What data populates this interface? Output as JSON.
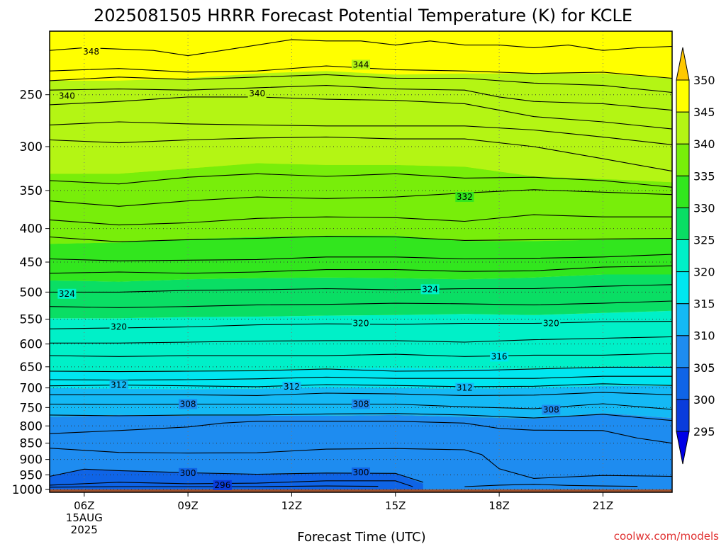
{
  "chart_data": {
    "type": "time-height contour",
    "title": "2025081505 HRRR Forecast Potential Temperature (K) for KCLE",
    "xlabel": "Forecast Time (UTC)",
    "ylabel": "",
    "credit": "coolwx.com/models",
    "x_ticks": [
      "06Z",
      "09Z",
      "12Z",
      "15Z",
      "18Z",
      "21Z"
    ],
    "x_date_lines": [
      "15AUG",
      "2025"
    ],
    "x_range_hours_utc": [
      5,
      23
    ],
    "y_ticks": [
      250,
      300,
      350,
      400,
      450,
      500,
      550,
      600,
      650,
      700,
      750,
      800,
      850,
      900,
      950,
      1000
    ],
    "y_range_hPa": [
      1010,
      200
    ],
    "y_scale": "log",
    "grid": "dotted",
    "colorbar": {
      "levels": [
        295,
        300,
        305,
        310,
        315,
        320,
        325,
        330,
        335,
        340,
        345,
        350
      ],
      "colors": [
        "#0000e6",
        "#0a3cdc",
        "#0f64e6",
        "#1e8cf0",
        "#14b9f5",
        "#00e6f0",
        "#00f0c8",
        "#0ade64",
        "#32e61e",
        "#78ee0a",
        "#b4f514",
        "#ffff00",
        "#ffc800"
      ],
      "extend": "both"
    },
    "ground_color": "#a0522d",
    "contour_labels": [
      {
        "value": 348,
        "hour": 6.2,
        "p": 215
      },
      {
        "value": 344,
        "hour": 14.0,
        "p": 225
      },
      {
        "value": 340,
        "hour": 5.5,
        "p": 251
      },
      {
        "value": 340,
        "hour": 11.0,
        "p": 249
      },
      {
        "value": 332,
        "hour": 17.0,
        "p": 358
      },
      {
        "value": 324,
        "hour": 5.5,
        "p": 503
      },
      {
        "value": 324,
        "hour": 16.0,
        "p": 495
      },
      {
        "value": 320,
        "hour": 7.0,
        "p": 565
      },
      {
        "value": 320,
        "hour": 14.0,
        "p": 558
      },
      {
        "value": 320,
        "hour": 19.5,
        "p": 558
      },
      {
        "value": 316,
        "hour": 18.0,
        "p": 627
      },
      {
        "value": 312,
        "hour": 7.0,
        "p": 693
      },
      {
        "value": 312,
        "hour": 12.0,
        "p": 697
      },
      {
        "value": 312,
        "hour": 17.0,
        "p": 700
      },
      {
        "value": 308,
        "hour": 9.0,
        "p": 741
      },
      {
        "value": 308,
        "hour": 14.0,
        "p": 741
      },
      {
        "value": 308,
        "hour": 19.5,
        "p": 756
      },
      {
        "value": 300,
        "hour": 9.0,
        "p": 944
      },
      {
        "value": 300,
        "hour": 14.0,
        "p": 942
      },
      {
        "value": 296,
        "hour": 10.0,
        "p": 985
      }
    ],
    "contour_lines": [
      {
        "value": 348,
        "hours": [
          5,
          6,
          8,
          9,
          10,
          11,
          12,
          13,
          14,
          15,
          16,
          17,
          18,
          19,
          20,
          21,
          22,
          23
        ],
        "p": [
          214,
          212,
          214,
          218,
          214,
          210,
          206,
          207,
          207,
          210,
          207,
          210,
          210,
          212,
          210,
          214,
          212,
          211
        ]
      },
      {
        "value": 346,
        "hours": [
          5,
          7,
          9,
          11,
          13,
          15,
          17,
          19,
          21,
          23
        ],
        "p": [
          230,
          228,
          231,
          230,
          226,
          229,
          230,
          232,
          231,
          236
        ]
      },
      {
        "value": 344,
        "hours": [
          5,
          7,
          9,
          11,
          13,
          15,
          17,
          19,
          21,
          23
        ],
        "p": [
          238,
          235,
          237,
          235,
          233,
          236,
          236,
          240,
          242,
          248
        ]
      },
      {
        "value": 342,
        "hours": [
          5,
          7,
          9,
          11,
          13,
          15,
          17,
          18,
          19,
          21,
          23
        ],
        "p": [
          246,
          245,
          246,
          244,
          242,
          245,
          246,
          252,
          256,
          258,
          264
        ]
      },
      {
        "value": 340,
        "hours": [
          5,
          7,
          9,
          11,
          13,
          15,
          17,
          19,
          21,
          23
        ],
        "p": [
          259,
          256,
          252,
          252,
          254,
          255,
          258,
          270,
          275,
          282
        ]
      },
      {
        "value": 338,
        "hours": [
          5,
          7,
          9,
          11,
          13,
          15,
          17,
          19,
          21,
          23
        ],
        "p": [
          278,
          275,
          277,
          278,
          279,
          279,
          279,
          283,
          290,
          298
        ]
      },
      {
        "value": 336,
        "hours": [
          5,
          7,
          9,
          11,
          13,
          15,
          17,
          19,
          21,
          23
        ],
        "p": [
          293,
          296,
          293,
          291,
          290,
          292,
          292,
          300,
          313,
          327
        ]
      },
      {
        "value": 334,
        "hours": [
          5,
          7,
          9,
          11,
          13,
          15,
          17,
          19,
          21,
          23
        ],
        "p": [
          338,
          342,
          334,
          330,
          333,
          330,
          335,
          334,
          338,
          346
        ]
      },
      {
        "value": 332,
        "hours": [
          5,
          7,
          9,
          11,
          13,
          15,
          17,
          19,
          21,
          23
        ],
        "p": [
          363,
          370,
          363,
          358,
          360,
          358,
          353,
          349,
          352,
          355
        ]
      },
      {
        "value": 330,
        "hours": [
          5,
          7,
          9,
          11,
          13,
          15,
          17,
          19,
          21,
          23
        ],
        "p": [
          388,
          395,
          392,
          386,
          384,
          385,
          390,
          381,
          384,
          384
        ]
      },
      {
        "value": 328,
        "hours": [
          5,
          7,
          9,
          11,
          13,
          15,
          17,
          19,
          21,
          23
        ],
        "p": [
          412,
          419,
          416,
          414,
          411,
          412,
          417,
          416,
          415,
          414
        ]
      },
      {
        "value": 326,
        "hours": [
          5,
          7,
          9,
          11,
          13,
          15,
          17,
          19,
          21,
          23
        ],
        "p": [
          445,
          448,
          447,
          446,
          442,
          442,
          445,
          444,
          442,
          438
        ]
      },
      {
        "value": 325,
        "hours": [
          5,
          7,
          9,
          11,
          13,
          15,
          17,
          19,
          21,
          23
        ],
        "p": [
          468,
          466,
          468,
          466,
          462,
          462,
          465,
          464,
          458,
          456
        ]
      },
      {
        "value": 324,
        "hours": [
          5,
          7,
          9,
          11,
          13,
          15,
          17,
          19,
          21,
          23
        ],
        "p": [
          500,
          500,
          497,
          496,
          494,
          496,
          494,
          494,
          490,
          487
        ]
      },
      {
        "value": 322,
        "hours": [
          5,
          7,
          9,
          11,
          13,
          15,
          17,
          19,
          21,
          23
        ],
        "p": [
          526,
          528,
          526,
          523,
          522,
          520,
          521,
          523,
          520,
          516
        ]
      },
      {
        "value": 320,
        "hours": [
          5,
          7,
          9,
          11,
          13,
          15,
          17,
          19,
          21,
          23
        ],
        "p": [
          569,
          567,
          565,
          561,
          559,
          560,
          558,
          558,
          555,
          554
        ]
      },
      {
        "value": 318,
        "hours": [
          5,
          7,
          9,
          11,
          13,
          15,
          17,
          19,
          21,
          23
        ],
        "p": [
          598,
          598,
          596,
          594,
          593,
          593,
          596,
          591,
          588,
          585
        ]
      },
      {
        "value": 316,
        "hours": [
          5,
          7,
          9,
          11,
          13,
          15,
          17,
          19,
          21,
          23
        ],
        "p": [
          625,
          627,
          625,
          625,
          625,
          622,
          627,
          624,
          624,
          620
        ]
      },
      {
        "value": 314,
        "hours": [
          5,
          7,
          9,
          11,
          13,
          15,
          17,
          19,
          21,
          23
        ],
        "p": [
          660,
          661,
          660,
          659,
          655,
          660,
          659,
          655,
          651,
          651
        ]
      },
      {
        "value": 313,
        "hours": [
          5,
          7,
          9,
          11,
          13,
          15,
          17,
          19,
          21,
          23
        ],
        "p": [
          680,
          681,
          680,
          678,
          674,
          677,
          677,
          677,
          672,
          672
        ]
      },
      {
        "value": 312,
        "hours": [
          5,
          7,
          9,
          11,
          13,
          15,
          17,
          19,
          21,
          23
        ],
        "p": [
          695,
          693,
          695,
          697,
          692,
          694,
          697,
          696,
          690,
          694
        ]
      },
      {
        "value": 310,
        "hours": [
          5,
          7,
          9,
          11,
          13,
          15,
          17,
          19,
          21,
          23
        ],
        "p": [
          717,
          717,
          717,
          719,
          713,
          715,
          719,
          718,
          711,
          717
        ]
      },
      {
        "value": 308,
        "hours": [
          5,
          7,
          9,
          11,
          13,
          15,
          17,
          19,
          21,
          23
        ],
        "p": [
          741,
          742,
          741,
          741,
          741,
          741,
          748,
          753,
          740,
          755
        ]
      },
      {
        "value": 306,
        "hours": [
          5,
          7,
          9,
          11,
          13,
          15,
          17,
          19,
          21,
          23
        ],
        "p": [
          770,
          772,
          770,
          770,
          767,
          766,
          770,
          778,
          768,
          785
        ]
      },
      {
        "value": 304,
        "hours": [
          5,
          7,
          9,
          10,
          11,
          13,
          15,
          17,
          18,
          19,
          21,
          22,
          23
        ],
        "p": [
          822,
          813,
          803,
          792,
          787,
          787,
          787,
          792,
          807,
          812,
          813,
          835,
          850
        ]
      },
      {
        "value": 302,
        "hours": [
          5,
          7,
          9,
          11,
          13,
          15,
          17,
          17.5,
          18,
          19,
          21,
          23
        ],
        "p": [
          865,
          878,
          880,
          879,
          868,
          866,
          870,
          885,
          930,
          962,
          952,
          955
        ]
      },
      {
        "value": 300,
        "hours": [
          5,
          6,
          7,
          9,
          11,
          13,
          15,
          15.8
        ],
        "p": [
          955,
          931,
          936,
          943,
          948,
          944,
          945,
          975
        ]
      },
      {
        "value": 298,
        "hours": [
          5,
          7,
          9,
          11,
          13,
          15,
          15.5
        ],
        "p": [
          985,
          975,
          980,
          978,
          970,
          970,
          990
        ]
      },
      {
        "value": 296,
        "hours": [
          5,
          7,
          9,
          11,
          13,
          14.5
        ],
        "p": [
          992,
          990,
          990,
          990,
          988,
          989
        ]
      },
      {
        "value": 294,
        "hours": [
          17,
          18,
          19,
          20,
          21,
          22
        ],
        "p": [
          990,
          985,
          982,
          986,
          988,
          989
        ]
      }
    ],
    "fill_regions": [
      {
        "from_level": 345,
        "hours": [
          5,
          7,
          9,
          11,
          13,
          15,
          17,
          19,
          21,
          23
        ],
        "p_upper": [
          200,
          200,
          200,
          200,
          200,
          200,
          200,
          200,
          200,
          200
        ],
        "p_lower": [
          238,
          238,
          236,
          232,
          230,
          233,
          232,
          232,
          232,
          236
        ]
      },
      {
        "from_level": 340,
        "hours": [
          5,
          7,
          9,
          11,
          13,
          15,
          17,
          19,
          21,
          23
        ],
        "p_upper": [
          238,
          238,
          236,
          232,
          230,
          233,
          232,
          232,
          232,
          236
        ],
        "p_lower": [
          330,
          330,
          324,
          318,
          320,
          320,
          322,
          333,
          336,
          340
        ]
      },
      {
        "from_level": 335,
        "hours": [
          5,
          7,
          9,
          11,
          13,
          15,
          17,
          19,
          21,
          23
        ],
        "p_upper": [
          330,
          330,
          324,
          318,
          320,
          320,
          322,
          333,
          336,
          340
        ],
        "p_lower": [
          422,
          420,
          415,
          412,
          410,
          410,
          418,
          418,
          416,
          414
        ]
      },
      {
        "from_level": 330,
        "hours": [
          5,
          7,
          9,
          11,
          13,
          15,
          17,
          19,
          21,
          23
        ],
        "p_upper": [
          422,
          420,
          415,
          412,
          410,
          410,
          418,
          418,
          416,
          414
        ],
        "p_lower": [
          480,
          482,
          478,
          476,
          475,
          476,
          478,
          475,
          470,
          470
        ]
      },
      {
        "from_level": 325,
        "hours": [
          5,
          7,
          9,
          11,
          13,
          15,
          17,
          19,
          21,
          23
        ],
        "p_upper": [
          480,
          482,
          478,
          476,
          475,
          476,
          478,
          475,
          470,
          470
        ],
        "p_lower": [
          548,
          548,
          546,
          545,
          543,
          542,
          540,
          542,
          538,
          534
        ]
      },
      {
        "from_level": 320,
        "hours": [
          5,
          7,
          9,
          11,
          13,
          15,
          17,
          19,
          21,
          23
        ],
        "p_upper": [
          548,
          548,
          546,
          545,
          543,
          542,
          540,
          542,
          538,
          534
        ],
        "p_lower": [
          660,
          660,
          660,
          658,
          654,
          652,
          655,
          654,
          650,
          648
        ]
      },
      {
        "from_level": 315,
        "hours": [
          5,
          7,
          9,
          11,
          13,
          15,
          17,
          19,
          21,
          23
        ],
        "p_upper": [
          660,
          660,
          660,
          658,
          654,
          652,
          655,
          654,
          650,
          648
        ],
        "p_lower": [
          700,
          702,
          703,
          702,
          698,
          700,
          702,
          700,
          695,
          695
        ]
      },
      {
        "from_level": 310,
        "hours": [
          5,
          7,
          9,
          11,
          13,
          15,
          17,
          19,
          21,
          23
        ],
        "p_upper": [
          700,
          702,
          703,
          702,
          698,
          700,
          702,
          700,
          695,
          695
        ],
        "p_lower": [
          775,
          770,
          772,
          772,
          772,
          770,
          775,
          780,
          765,
          778
        ]
      },
      {
        "from_level": 305,
        "hours": [
          5,
          7,
          9,
          11,
          13,
          15,
          17,
          19,
          21,
          23
        ],
        "p_upper": [
          775,
          770,
          772,
          772,
          772,
          770,
          775,
          780,
          765,
          778
        ],
        "p_lower": [
          1010,
          1010,
          1010,
          1010,
          1010,
          1010,
          1010,
          1010,
          1010,
          1010
        ]
      },
      {
        "from_level": 300,
        "hours": [
          5,
          6,
          7,
          9,
          11,
          13,
          15,
          15.8
        ],
        "p_upper": [
          955,
          932,
          937,
          944,
          948,
          944,
          946,
          980
        ],
        "p_lower": [
          1000,
          1000,
          1000,
          1000,
          1000,
          1000,
          1000,
          1000
        ]
      }
    ]
  }
}
